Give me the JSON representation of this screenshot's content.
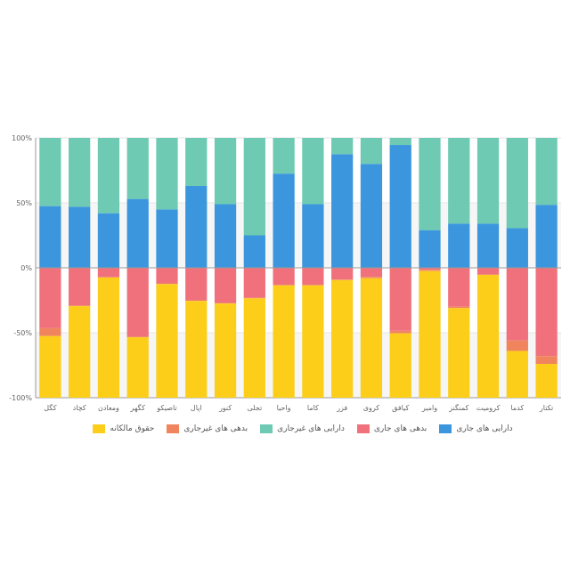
{
  "chart_data": {
    "type": "bar",
    "stacked": true,
    "title": "",
    "xlabel": "",
    "ylabel": "",
    "ylim": [
      -100,
      100
    ],
    "yticks": [
      "100%",
      "50%",
      "0%",
      "-50%",
      "-100%"
    ],
    "grid": true,
    "legend_position": "bottom",
    "categories": [
      "تکتار",
      "کدما",
      "کرومیت",
      "کمنگنز",
      "وامیر",
      "کیافق",
      "کروی",
      "فزر",
      "کاما",
      "واحیا",
      "تجلی",
      "کنور",
      "اپال",
      "تاصیکو",
      "کگهر",
      "ومعادن",
      "کچاد",
      "کگل"
    ],
    "series": [
      {
        "name": "دارایی های جاری",
        "color": "#3b96de",
        "side": "positive",
        "values": [
          48.5,
          30.5,
          34,
          34,
          29,
          94.5,
          80,
          87.5,
          49,
          72.5,
          25,
          49,
          63,
          45,
          53,
          42,
          47,
          47.5
        ]
      },
      {
        "name": "دارایی های غیرجاری",
        "color": "#6ecab3",
        "side": "positive",
        "values": [
          51.5,
          69.5,
          66,
          66,
          71,
          5.5,
          20,
          12.5,
          51,
          27.5,
          75,
          51,
          37,
          55,
          47,
          58,
          53,
          52.5
        ]
      },
      {
        "name": "بدهی های جاری",
        "color": "#f0717c",
        "side": "negative",
        "values": [
          68,
          56,
          5,
          30,
          1.5,
          48.5,
          7,
          9,
          13,
          13,
          23,
          27,
          25,
          12,
          53,
          7,
          29,
          46.5
        ]
      },
      {
        "name": "بدهی های غیرجاری",
        "color": "#f0855d",
        "side": "negative",
        "values": [
          6,
          8,
          0.5,
          1,
          1,
          2,
          1,
          0.5,
          0.5,
          0.5,
          0.5,
          0.5,
          0.5,
          0.5,
          0.5,
          0.5,
          0.5,
          6
        ]
      },
      {
        "name": "حقوق مالکانه",
        "color": "#fcce1a",
        "side": "negative",
        "values": [
          26,
          36,
          94.5,
          69,
          97.5,
          49.5,
          92,
          90.5,
          86.5,
          86.5,
          76.5,
          72.5,
          74.5,
          87.5,
          46.5,
          92.5,
          70.5,
          47.5
        ]
      }
    ],
    "legend_order": [
      "حقوق مالکانه",
      "بدهی های غیرجاری",
      "دارایی های غیرجاری",
      "بدهی های جاری",
      "دارایی های جاری"
    ]
  }
}
